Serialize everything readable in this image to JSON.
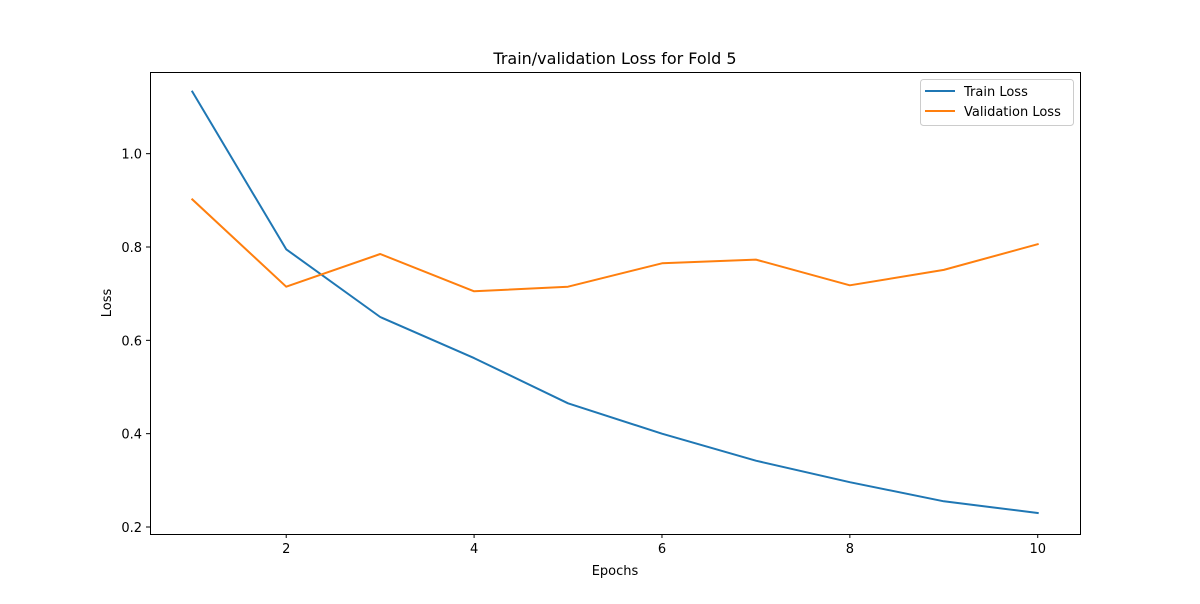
{
  "chart_data": {
    "type": "line",
    "title": "Train/validation Loss for Fold 5",
    "xlabel": "Epochs",
    "ylabel": "Loss",
    "x": [
      1,
      2,
      3,
      4,
      5,
      6,
      7,
      8,
      9,
      10
    ],
    "xlim": [
      0.55,
      10.45
    ],
    "ylim": [
      0.185,
      1.175
    ],
    "xticks": [
      2,
      4,
      6,
      8,
      10
    ],
    "yticks": [
      0.2,
      0.4,
      0.6,
      0.8,
      1.0
    ],
    "xtick_labels": [
      "2",
      "4",
      "6",
      "8",
      "10"
    ],
    "ytick_labels": [
      "0.2",
      "0.4",
      "0.6",
      "0.8",
      "1.0"
    ],
    "grid": false,
    "legend_position": "top-right",
    "series": [
      {
        "name": "Train Loss",
        "color": "#1f77b4",
        "values": [
          1.133,
          0.795,
          0.65,
          0.562,
          0.465,
          0.4,
          0.342,
          0.296,
          0.255,
          0.23
        ]
      },
      {
        "name": "Validation Loss",
        "color": "#ff7f0e",
        "values": [
          0.902,
          0.715,
          0.785,
          0.705,
          0.715,
          0.765,
          0.773,
          0.718,
          0.751,
          0.806
        ]
      }
    ]
  }
}
